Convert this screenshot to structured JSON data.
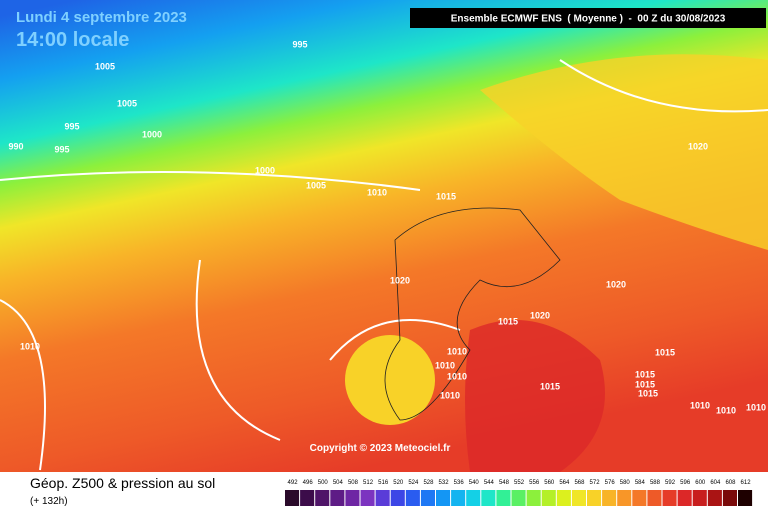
{
  "header": {
    "date": "Lundi 4 septembre 2023",
    "time": "14:00 locale",
    "model": "Ensemble ECMWF ENS  ( Moyenne )  -  00 Z du 30/08/2023"
  },
  "isobars": [
    995,
    1005,
    1005,
    995,
    1000,
    990,
    995,
    1000,
    1005,
    1010,
    1015,
    1020,
    1020,
    1020,
    1020,
    1015,
    1010,
    1010,
    1010,
    1010,
    1015,
    1015,
    1015,
    1015,
    1015,
    1010,
    1010,
    1010,
    1010
  ],
  "copyright": "Copyright © 2023 Meteociel.fr",
  "legend": {
    "title": "Géop. Z500 & pression au sol",
    "lead": "(+ 132h)",
    "scale": {
      "values": [
        492,
        496,
        500,
        504,
        508,
        512,
        516,
        520,
        524,
        528,
        532,
        536,
        540,
        544,
        548,
        552,
        556,
        560,
        564,
        568,
        572,
        576,
        580,
        584,
        588,
        592,
        596,
        600,
        604,
        608,
        612
      ],
      "colors": [
        "#2a0a2a",
        "#3c0c4a",
        "#4f1468",
        "#5e1c86",
        "#6e26a4",
        "#7c34c0",
        "#5a3cd8",
        "#3c46e6",
        "#2a5cf0",
        "#1e78f4",
        "#1496f4",
        "#14b4f0",
        "#14d0e6",
        "#1ee6c8",
        "#32f096",
        "#5af064",
        "#8cf03c",
        "#b4f028",
        "#dcf01e",
        "#f0e628",
        "#f8d228",
        "#f8b428",
        "#f89628",
        "#f47828",
        "#ee5a28",
        "#e63c28",
        "#dc2828",
        "#c81e1e",
        "#aa1414",
        "#7a0a0a",
        "#1e0000"
      ]
    }
  }
}
